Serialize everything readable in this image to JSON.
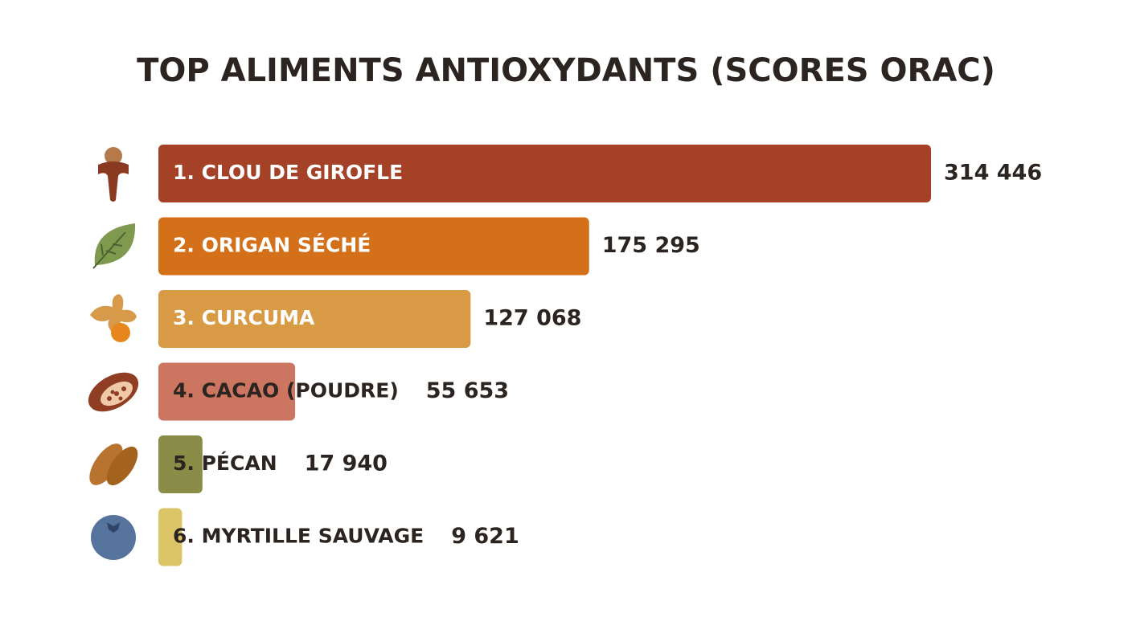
{
  "chart_data": {
    "type": "hbar",
    "title": "TOP ALIMENTS ANTIOXYDANTS (SCORES ORAC)",
    "categories": [
      "1. CLOU DE GIROFLE",
      "2. ORIGAN SÉCHÉ",
      "3. CURCUMA",
      "4. CACAO (POUDRE)",
      "5. PÉCAN",
      "6. MYRTILLE SAUVAGE"
    ],
    "values": [
      314446,
      175295,
      127068,
      55653,
      17940,
      9621
    ],
    "value_labels": [
      "314 446",
      "175 295",
      "127 068",
      "55 653",
      "17 940",
      "9 621"
    ],
    "colors": [
      "#a44126",
      "#d4701a",
      "#d99a45",
      "#cc7560",
      "#8a8d48",
      "#dcc567"
    ]
  }
}
